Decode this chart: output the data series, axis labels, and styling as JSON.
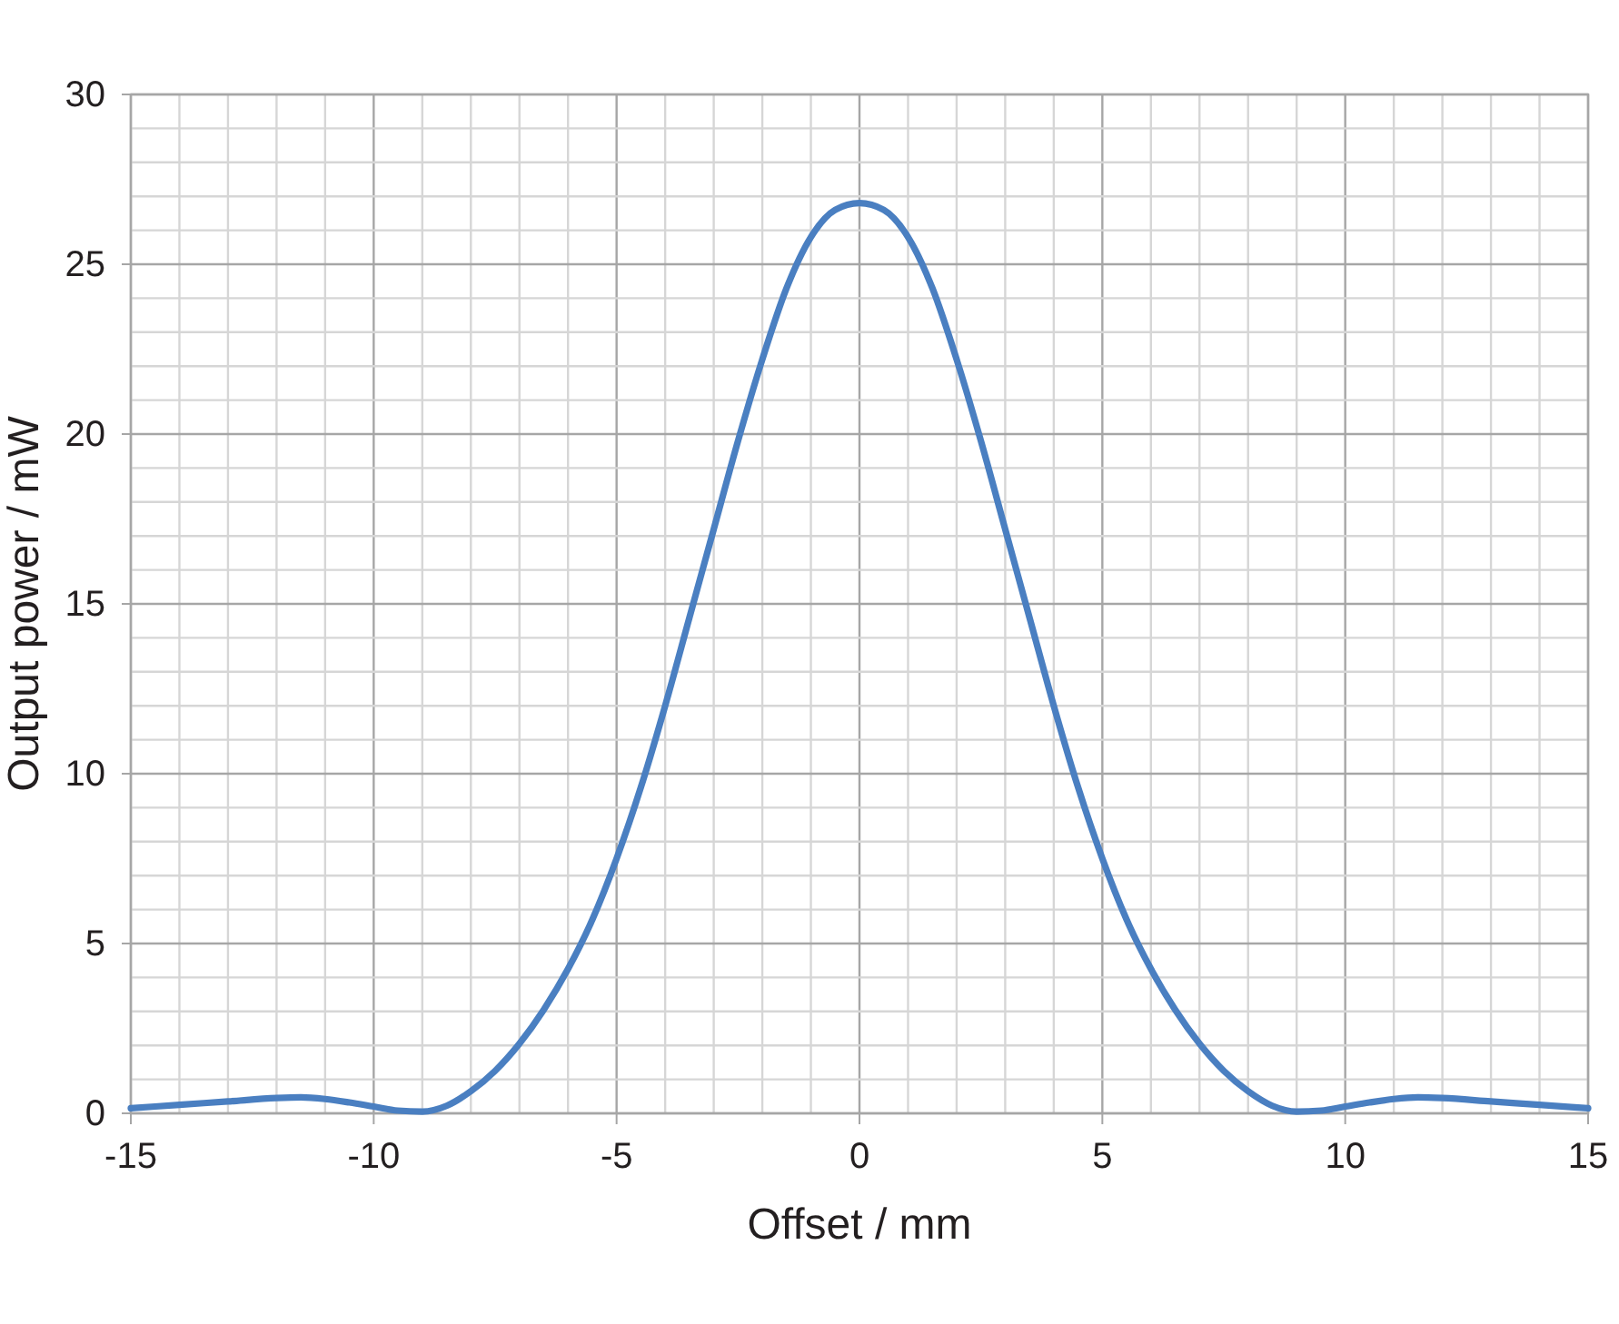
{
  "chart_data": {
    "type": "line",
    "xlabel": "Offset / mm",
    "ylabel": "Output power / mW",
    "xlim": [
      -15,
      15
    ],
    "ylim": [
      0,
      30
    ],
    "xticks": [
      -15,
      {
        "value": -14,
        "label": null
      },
      {
        "value": -13,
        "label": null
      },
      {
        "value": -12,
        "label": null
      },
      {
        "value": -11,
        "label": null
      },
      -10,
      {
        "value": -9,
        "label": null
      },
      {
        "value": -8,
        "label": null
      },
      {
        "value": -7,
        "label": null
      },
      {
        "value": -6,
        "label": null
      },
      -5,
      {
        "value": -4,
        "label": null
      },
      {
        "value": -3,
        "label": null
      },
      {
        "value": -2,
        "label": null
      },
      {
        "value": -1,
        "label": null
      },
      0,
      {
        "value": 1,
        "label": null
      },
      {
        "value": 2,
        "label": null
      },
      {
        "value": 3,
        "label": null
      },
      {
        "value": 4,
        "label": null
      },
      5,
      {
        "value": 6,
        "label": null
      },
      {
        "value": 7,
        "label": null
      },
      {
        "value": 8,
        "label": null
      },
      {
        "value": 9,
        "label": null
      },
      10,
      {
        "value": 11,
        "label": null
      },
      {
        "value": 12,
        "label": null
      },
      {
        "value": 13,
        "label": null
      },
      {
        "value": 14,
        "label": null
      },
      15
    ],
    "yticks": [
      0,
      {
        "value": 1,
        "label": null
      },
      {
        "value": 2,
        "label": null
      },
      {
        "value": 3,
        "label": null
      },
      {
        "value": 4,
        "label": null
      },
      5,
      {
        "value": 6,
        "label": null
      },
      {
        "value": 7,
        "label": null
      },
      {
        "value": 8,
        "label": null
      },
      {
        "value": 9,
        "label": null
      },
      10,
      {
        "value": 11,
        "label": null
      },
      {
        "value": 12,
        "label": null
      },
      {
        "value": 13,
        "label": null
      },
      {
        "value": 14,
        "label": null
      },
      15,
      {
        "value": 16,
        "label": null
      },
      {
        "value": 17,
        "label": null
      },
      {
        "value": 18,
        "label": null
      },
      {
        "value": 19,
        "label": null
      },
      20,
      {
        "value": 21,
        "label": null
      },
      {
        "value": 22,
        "label": null
      },
      {
        "value": 23,
        "label": null
      },
      {
        "value": 24,
        "label": null
      },
      25,
      {
        "value": 26,
        "label": null
      },
      {
        "value": 27,
        "label": null
      },
      {
        "value": 28,
        "label": null
      },
      {
        "value": 29,
        "label": null
      },
      30
    ],
    "grid": true,
    "marker": "none",
    "line_style": "solid",
    "x": [
      -15,
      -14,
      -13,
      -12,
      -11.5,
      -11,
      -10.5,
      -10,
      -9.5,
      -9,
      -8.5,
      -8,
      -7.5,
      -7,
      -6.5,
      -6,
      -5.5,
      -5,
      -4.5,
      -4,
      -3.5,
      -3,
      -2.5,
      -2,
      -1.5,
      -1,
      -0.5,
      0,
      0.5,
      1,
      1.5,
      2,
      2.5,
      3,
      3.5,
      4,
      4.5,
      5,
      5.5,
      6,
      6.5,
      7,
      7.5,
      8,
      8.5,
      9,
      9.5,
      10,
      10.5,
      11,
      11.5,
      12,
      13,
      14,
      15
    ],
    "series": [
      {
        "color": "#4a7fc1",
        "values": [
          0.15,
          0.25,
          0.35,
          0.45,
          0.47,
          0.42,
          0.32,
          0.2,
          0.08,
          0.05,
          0.22,
          0.65,
          1.25,
          2.05,
          3.05,
          4.25,
          5.7,
          7.5,
          9.6,
          12.0,
          14.6,
          17.2,
          19.8,
          22.2,
          24.3,
          25.8,
          26.6,
          26.8,
          26.6,
          25.8,
          24.3,
          22.2,
          19.8,
          17.2,
          14.6,
          12.0,
          9.6,
          7.5,
          5.7,
          4.25,
          3.05,
          2.05,
          1.25,
          0.65,
          0.22,
          0.05,
          0.08,
          0.2,
          0.32,
          0.42,
          0.47,
          0.45,
          0.35,
          0.25,
          0.15
        ]
      }
    ]
  }
}
